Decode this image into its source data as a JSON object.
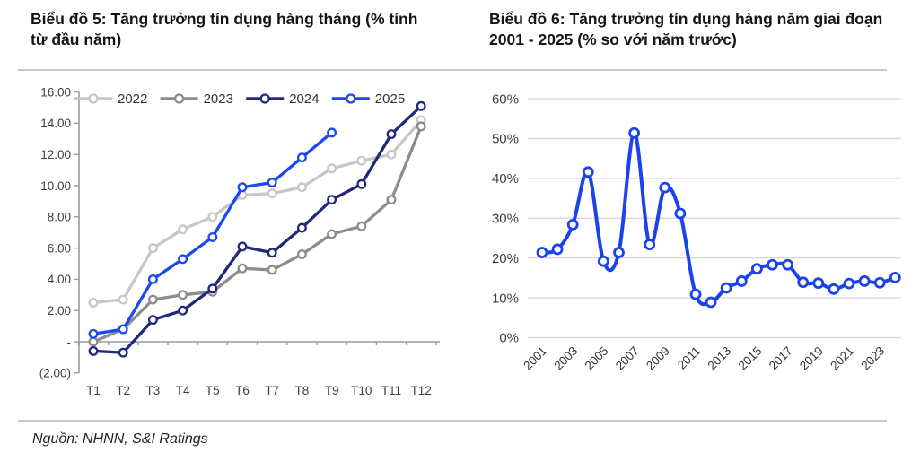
{
  "header": {
    "left_title": "Biểu đồ 5: Tăng trưởng tín dụng hàng tháng (% tính từ đầu năm)",
    "right_title": "Biểu đồ 6: Tăng trưởng tín dụng hàng năm giai đoạn 2001 - 2025 (% so với năm trước)"
  },
  "footer": {
    "source_note": "Nguồn: NHNN, S&I Ratings"
  },
  "colors": {
    "series_2022": "#c7c7c7",
    "series_2023": "#8c8c8c",
    "series_2024": "#20287d",
    "series_2025": "#1c49ee",
    "annual_line": "#1b43eb",
    "axis": "#9b9b9b",
    "gridline": "#d9d9d9",
    "tick_text": "#3d3d3d",
    "divider": "#c9c9c9"
  },
  "chart_data": [
    {
      "type": "line",
      "title": "Biểu đồ 5: Tăng trưởng tín dụng hàng tháng (% tính từ đầu năm)",
      "categories": [
        "T1",
        "T2",
        "T3",
        "T4",
        "T5",
        "T6",
        "T7",
        "T8",
        "T9",
        "T10",
        "T11",
        "T12"
      ],
      "series": [
        {
          "name": "2022",
          "color": "#c7c7c7",
          "values": [
            2.5,
            2.7,
            6.0,
            7.2,
            8.0,
            9.4,
            9.5,
            9.9,
            11.1,
            11.6,
            12.0,
            14.2
          ]
        },
        {
          "name": "2023",
          "color": "#8c8c8c",
          "values": [
            0.0,
            0.8,
            2.7,
            3.0,
            3.2,
            4.7,
            4.6,
            5.6,
            6.9,
            7.4,
            9.1,
            13.8
          ]
        },
        {
          "name": "2024",
          "color": "#20287d",
          "values": [
            -0.6,
            -0.7,
            1.4,
            2.0,
            3.4,
            6.1,
            5.7,
            7.3,
            9.1,
            10.1,
            13.3,
            15.1
          ]
        },
        {
          "name": "2025",
          "color": "#1c49ee",
          "values": [
            0.5,
            0.8,
            4.0,
            5.3,
            6.7,
            9.9,
            10.2,
            11.8,
            13.4
          ]
        }
      ],
      "ylim": [
        -2,
        16
      ],
      "ytick_step": 2,
      "ytick_labels": [
        "16.00",
        "14.00",
        "12.00",
        "10.00",
        "8.00",
        "6.00",
        "4.00",
        "2.00",
        "-",
        "(2.00)"
      ],
      "legend_position": "top",
      "legend_entries": [
        "2022",
        "2023",
        "2024",
        "2025"
      ],
      "grid": false,
      "marker": "open-circle"
    },
    {
      "type": "line",
      "title": "Biểu đồ 6: Tăng trưởng tín dụng hàng năm giai đoạn 2001 - 2025 (% so với năm trước)",
      "x": [
        2001,
        2002,
        2003,
        2004,
        2005,
        2006,
        2007,
        2008,
        2009,
        2010,
        2011,
        2012,
        2013,
        2014,
        2015,
        2016,
        2017,
        2018,
        2019,
        2020,
        2021,
        2022,
        2023,
        2024
      ],
      "series": [
        {
          "name": "Tăng trưởng tín dụng hàng năm",
          "color": "#1b43eb",
          "values": [
            21.4,
            22.2,
            28.4,
            41.6,
            19.2,
            21.4,
            51.4,
            23.4,
            37.7,
            31.2,
            10.9,
            8.9,
            12.5,
            14.2,
            17.3,
            18.3,
            18.3,
            13.9,
            13.7,
            12.2,
            13.6,
            14.2,
            13.8,
            15.1
          ]
        }
      ],
      "ylim": [
        0,
        60
      ],
      "ytick_step": 10,
      "ytick_labels": [
        "60%",
        "50%",
        "40%",
        "30%",
        "20%",
        "10%",
        "0%"
      ],
      "xtick_labels": [
        "2001",
        "2003",
        "2005",
        "2007",
        "2009",
        "2011",
        "2013",
        "2015",
        "2017",
        "2019",
        "2021",
        "2023"
      ],
      "grid": true,
      "legend_position": "none",
      "smooth": true,
      "marker": "open-circle"
    }
  ]
}
